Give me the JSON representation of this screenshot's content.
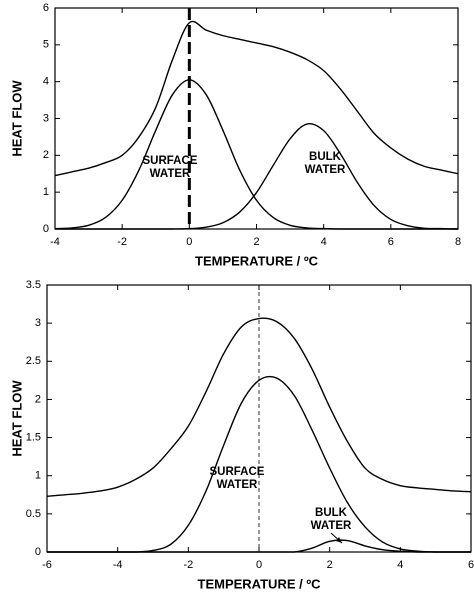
{
  "chart_data": [
    {
      "type": "line",
      "xlabel": "TEMPERATURE / ºC",
      "ylabel": "HEAT FLOW",
      "xlim": [
        -4,
        8
      ],
      "xticks": [
        -4,
        -2,
        0,
        2,
        4,
        6,
        8
      ],
      "ylim": [
        0,
        6
      ],
      "yticks": [
        0,
        1,
        2,
        3,
        4,
        5,
        6
      ],
      "vline": 0,
      "vline_style": "bold-dashed",
      "annotations": [
        [
          "SURFACE",
          "WATER"
        ],
        [
          "BULK",
          "WATER"
        ]
      ],
      "x": [
        -4,
        -3.5,
        -3,
        -2.5,
        -2,
        -1.5,
        -1,
        -0.5,
        0,
        0.5,
        1,
        1.5,
        2,
        2.5,
        3,
        3.5,
        4,
        4.5,
        5,
        5.5,
        6,
        6.5,
        7,
        7.5,
        8
      ],
      "series": [
        {
          "color": "#000000",
          "values": [
            1.45,
            1.55,
            1.65,
            1.8,
            2.0,
            2.5,
            3.3,
            4.6,
            5.6,
            5.4,
            5.25,
            5.15,
            5.05,
            4.95,
            4.8,
            4.6,
            4.3,
            3.8,
            3.2,
            2.6,
            2.2,
            1.9,
            1.7,
            1.6,
            1.5
          ]
        },
        {
          "color": "#000000",
          "values": [
            0.01,
            0.03,
            0.1,
            0.31,
            0.78,
            1.6,
            2.68,
            3.65,
            4.05,
            3.65,
            2.68,
            1.6,
            0.78,
            0.31,
            0.1,
            0.03,
            0.01,
            0,
            0,
            0,
            0,
            0,
            0,
            0,
            0
          ]
        },
        {
          "color": "#000000",
          "values": [
            0,
            0,
            0,
            0,
            0,
            0,
            0,
            0,
            0.01,
            0.05,
            0.17,
            0.46,
            0.99,
            1.73,
            2.45,
            2.85,
            2.67,
            2.04,
            1.27,
            0.64,
            0.26,
            0.09,
            0.02,
            0.01,
            0
          ]
        }
      ]
    },
    {
      "type": "line",
      "xlabel": "TEMPERATURE / ºC",
      "ylabel": "HEAT FLOW",
      "xlim": [
        -6,
        6
      ],
      "xticks": [
        -6,
        -4,
        -2,
        0,
        2,
        4,
        6
      ],
      "ylim": [
        0,
        3.5
      ],
      "yticks": [
        0,
        0.5,
        1,
        1.5,
        2,
        2.5,
        3,
        3.5
      ],
      "vline": 0,
      "vline_style": "thin-dashed",
      "annotations": [
        [
          "SURFACE",
          "WATER"
        ],
        [
          "BULK",
          "WATER"
        ]
      ],
      "x": [
        -6,
        -5.5,
        -5,
        -4.5,
        -4,
        -3.5,
        -3,
        -2.5,
        -2,
        -1.5,
        -1,
        -0.5,
        0,
        0.5,
        1,
        1.5,
        2,
        2.5,
        3,
        3.5,
        4,
        4.5,
        5,
        5.5,
        6
      ],
      "series": [
        {
          "color": "#000000",
          "values": [
            0.73,
            0.75,
            0.77,
            0.8,
            0.85,
            0.95,
            1.1,
            1.35,
            1.65,
            2.1,
            2.6,
            2.95,
            3.06,
            3.02,
            2.8,
            2.4,
            1.9,
            1.45,
            1.1,
            0.95,
            0.87,
            0.84,
            0.82,
            0.8,
            0.79
          ]
        },
        {
          "color": "#000000",
          "values": [
            0,
            0,
            0,
            0,
            0,
            0,
            0.02,
            0.1,
            0.35,
            0.8,
            1.4,
            1.95,
            2.25,
            2.28,
            2.05,
            1.6,
            1.1,
            0.65,
            0.33,
            0.13,
            0.04,
            0.01,
            0,
            0,
            0
          ]
        },
        {
          "color": "#000000",
          "values": [
            0,
            0,
            0,
            0,
            0,
            0,
            0,
            0,
            0,
            0,
            0,
            0,
            0,
            0,
            0,
            0.05,
            0.14,
            0.15,
            0.08,
            0.03,
            0.01,
            0,
            0,
            0,
            0
          ]
        }
      ]
    }
  ]
}
